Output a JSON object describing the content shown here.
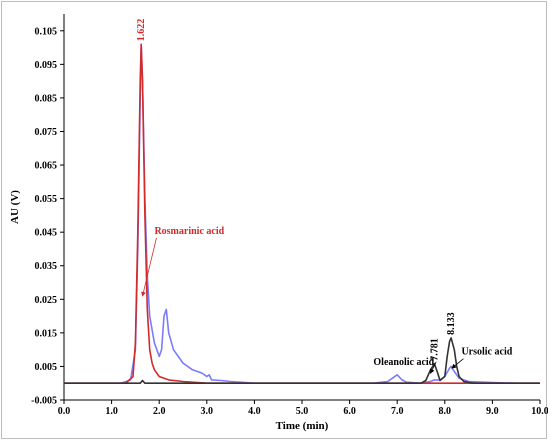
{
  "chart_data": {
    "type": "line",
    "title": "",
    "xlabel": "Time (min)",
    "ylabel": "AU (V)",
    "xlim": [
      0.0,
      10.0
    ],
    "ylim": [
      -0.005,
      0.11
    ],
    "xticks": [
      "0.0",
      "1.0",
      "2.0",
      "3.0",
      "4.0",
      "5.0",
      "6.0",
      "7.0",
      "8.0",
      "9.0",
      "10.0"
    ],
    "yticks": [
      "-0.005",
      "0.005",
      "0.015",
      "0.025",
      "0.035",
      "0.045",
      "0.055",
      "0.065",
      "0.075",
      "0.085",
      "0.095",
      "0.105"
    ],
    "grid": false,
    "legend": "none",
    "series": [
      {
        "color": "#7b7bff",
        "x": [
          0.0,
          1.2,
          1.4,
          1.5,
          1.55,
          1.6,
          1.622,
          1.65,
          1.7,
          1.75,
          1.8,
          1.9,
          2.0,
          2.05,
          2.1,
          2.15,
          2.2,
          2.3,
          2.5,
          2.7,
          2.9,
          3.0,
          3.05,
          3.1,
          3.3,
          3.5,
          4.0,
          5.0,
          6.0,
          6.5,
          6.8,
          6.9,
          7.0,
          7.1,
          7.2,
          7.5,
          7.7,
          7.78,
          7.9,
          8.0,
          8.1,
          8.133,
          8.2,
          8.3,
          8.5,
          9.0,
          9.5,
          10.0
        ],
        "y": [
          0.0,
          0.0,
          0.001,
          0.01,
          0.04,
          0.085,
          0.1005,
          0.09,
          0.055,
          0.032,
          0.02,
          0.012,
          0.008,
          0.01,
          0.02,
          0.022,
          0.015,
          0.01,
          0.006,
          0.004,
          0.003,
          0.002,
          0.0025,
          0.001,
          0.0008,
          0.0005,
          0.0,
          0.0,
          0.0,
          0.0,
          0.0005,
          0.0015,
          0.0025,
          0.001,
          0.0003,
          0.0,
          0.0005,
          0.001,
          0.001,
          0.002,
          0.0045,
          0.005,
          0.0035,
          0.0015,
          0.0005,
          0.0002,
          0.0,
          0.0
        ]
      },
      {
        "color": "#d12a2a",
        "x": [
          0.0,
          1.3,
          1.45,
          1.5,
          1.55,
          1.6,
          1.622,
          1.65,
          1.7,
          1.75,
          1.8,
          1.85,
          1.9,
          2.0,
          2.2,
          2.5,
          3.0,
          5.0,
          7.0,
          8.0,
          10.0
        ],
        "y": [
          0.0,
          0.0,
          0.002,
          0.012,
          0.045,
          0.09,
          0.101,
          0.09,
          0.05,
          0.022,
          0.01,
          0.006,
          0.004,
          0.002,
          0.001,
          0.0005,
          0.0,
          0.0,
          0.0,
          0.0,
          0.0
        ]
      },
      {
        "color": "#333333",
        "x": [
          0.0,
          1.5,
          1.6,
          1.65,
          1.7,
          1.8,
          2.0,
          5.0,
          7.0,
          7.5,
          7.6,
          7.7,
          7.781,
          7.85,
          7.9,
          8.0,
          8.05,
          8.1,
          8.133,
          8.2,
          8.25,
          8.3,
          8.4,
          8.6,
          9.0,
          10.0
        ],
        "y": [
          0.0,
          0.0,
          0.0,
          0.0008,
          0.0,
          0.0,
          0.0,
          0.0,
          0.0,
          0.0,
          0.0008,
          0.004,
          0.0058,
          0.003,
          0.0008,
          0.002,
          0.008,
          0.0125,
          0.0135,
          0.01,
          0.005,
          0.002,
          0.0005,
          0.0,
          0.0,
          0.0
        ]
      }
    ],
    "annotations": [
      {
        "text": "1.622",
        "at_x": 1.622,
        "color": "#d12a2a",
        "style": "peak-label"
      },
      {
        "text": "7.781",
        "at_x": 7.781,
        "color": "#000000",
        "style": "peak-label"
      },
      {
        "text": "8.133",
        "at_x": 8.133,
        "color": "#000000",
        "style": "peak-label"
      },
      {
        "text": "Rosmarinic acid",
        "color": "#d12a2a",
        "style": "callout",
        "label_x": 1.9,
        "label_y": 0.0445,
        "arrow_to_x": 1.65,
        "arrow_to_y": 0.026
      },
      {
        "text": "Oleanolic acid",
        "color": "#000000",
        "style": "callout",
        "label_x": 6.5,
        "label_y": 0.0055,
        "arrow_to_x": 7.7,
        "arrow_to_y": 0.003
      },
      {
        "text": "Ursolic acid",
        "color": "#000000",
        "style": "callout",
        "label_x": 8.35,
        "label_y": 0.0085,
        "arrow_to_x": 8.15,
        "arrow_to_y": 0.0045
      }
    ]
  }
}
